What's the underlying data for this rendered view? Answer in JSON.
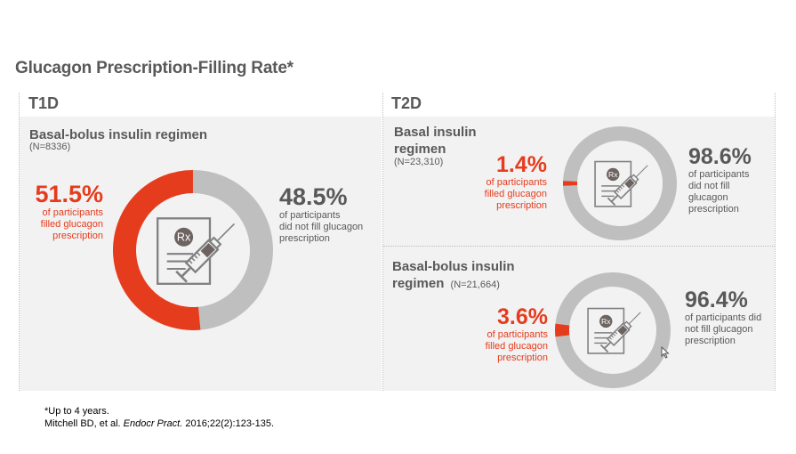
{
  "title": "Glucagon Prescription-Filling Rate*",
  "colors": {
    "filled": "#e63c1e",
    "not_filled": "#bfbfbf",
    "panel_bg": "#f2f2f2",
    "text": "#595959"
  },
  "panels": {
    "t1d": {
      "label": "T1D",
      "groups": [
        {
          "title": "Basal-bolus insulin regimen",
          "n": "(N=8336)",
          "filled_pct_label": "51.5%",
          "filled_desc": [
            "of participants",
            "filled glucagon",
            "prescription"
          ],
          "not_filled_pct_label": "48.5%",
          "not_filled_desc": [
            "of participants",
            "did not fill glucagon",
            "prescription"
          ]
        }
      ]
    },
    "t2d": {
      "label": "T2D",
      "groups": [
        {
          "title_lines": [
            "Basal insulin",
            "regimen"
          ],
          "n": "(N=23,310)",
          "filled_pct_label": "1.4%",
          "filled_desc": [
            "of participants",
            "filled glucagon",
            "prescription"
          ],
          "not_filled_pct_label": "98.6%",
          "not_filled_desc": [
            "of participants",
            "did not fill",
            "glucagon",
            "prescription"
          ]
        },
        {
          "title_lines": [
            "Basal-bolus insulin",
            "regimen"
          ],
          "n": "(N=21,664)",
          "filled_pct_label": "3.6%",
          "filled_desc": [
            "of participants",
            "filled glucagon",
            "prescription"
          ],
          "not_filled_pct_label": "96.4%",
          "not_filled_desc": [
            "of participants did",
            "not fill glucagon",
            "prescription"
          ]
        }
      ]
    }
  },
  "icon": {
    "name": "prescription-syringe-icon",
    "rx_text": "Rx"
  },
  "footnotes": {
    "line1": "*Up to 4 years.",
    "citation_authors": "Mitchell BD, et al. ",
    "citation_journal": "Endocr Pract.",
    "citation_rest": " 2016;22(2):123-135."
  },
  "chart_data": [
    {
      "type": "pie",
      "variant": "donut",
      "title": "T1D – Basal-bolus insulin regimen (N=8336)",
      "categories": [
        "Filled glucagon prescription",
        "Did not fill glucagon prescription"
      ],
      "values": [
        51.5,
        48.5
      ],
      "unit": "%"
    },
    {
      "type": "pie",
      "variant": "donut",
      "title": "T2D – Basal insulin regimen (N=23,310)",
      "categories": [
        "Filled glucagon prescription",
        "Did not fill glucagon prescription"
      ],
      "values": [
        1.4,
        98.6
      ],
      "unit": "%"
    },
    {
      "type": "pie",
      "variant": "donut",
      "title": "T2D – Basal-bolus insulin regimen (N=21,664)",
      "categories": [
        "Filled glucagon prescription",
        "Did not fill glucagon prescription"
      ],
      "values": [
        3.6,
        96.4
      ],
      "unit": "%"
    }
  ]
}
